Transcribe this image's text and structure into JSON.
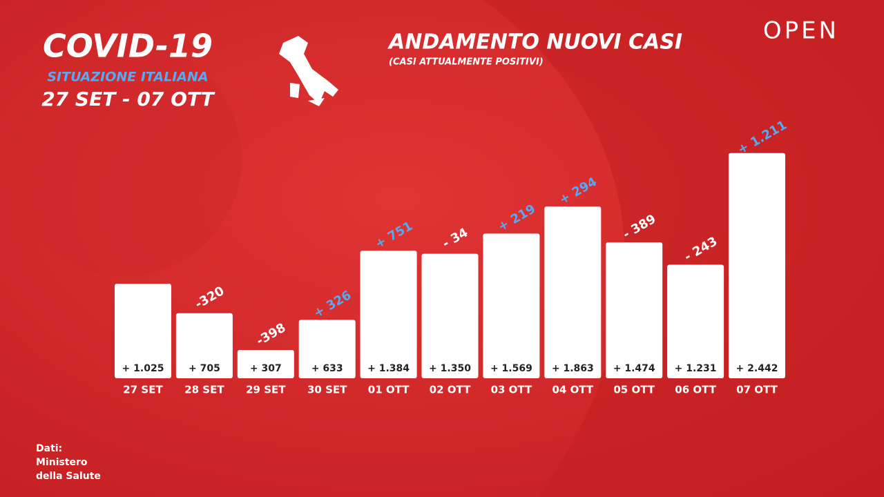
{
  "chart_data": {
    "type": "bar",
    "title": "ANDAMENTO NUOVI CASI",
    "subtitle": "(CASI ATTUALMENTE POSITIVI)",
    "categories": [
      "27 SET",
      "28 SET",
      "29 SET",
      "30 SET",
      "01 OTT",
      "02 OTT",
      "03 OTT",
      "04 OTT",
      "05 OTT",
      "06 OTT",
      "07 OTT"
    ],
    "values": [
      1025,
      705,
      307,
      633,
      1384,
      1350,
      1569,
      1863,
      1474,
      1231,
      2442
    ],
    "value_labels": [
      "+ 1.025",
      "+ 705",
      "+ 307",
      "+ 633",
      "+ 1.384",
      "+ 1.350",
      "+ 1.569",
      "+ 1.863",
      "+ 1.474",
      "+ 1.231",
      "+ 2.442"
    ],
    "color": "#ffffff",
    "ylim": [
      0,
      2500
    ],
    "changes": {
      "values": [
        null,
        -320,
        -398,
        326,
        751,
        -34,
        219,
        294,
        -389,
        -243,
        1211
      ],
      "value_labels": [
        null,
        "-320",
        "-398",
        "+ 326",
        "+ 751",
        "- 34",
        "+ 219",
        "+ 294",
        "- 389",
        "- 243",
        "+ 1.211"
      ],
      "positive_color": "#5aa9f0",
      "negative_color": "#ffffff"
    }
  },
  "header": {
    "headline": "COVID-19",
    "region": "SITUAZIONE ITALIANA",
    "period": "27 SET - 07 OTT",
    "brand": "OPEN"
  },
  "source": [
    "Dati:",
    "Ministero",
    "della Salute"
  ]
}
